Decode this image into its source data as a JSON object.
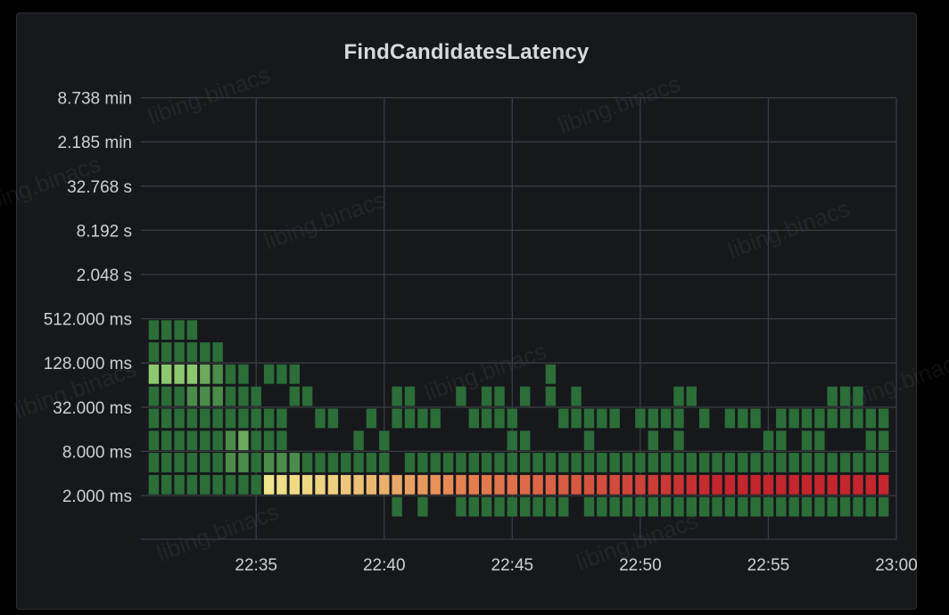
{
  "panel": {
    "title": "FindCandidatesLatency"
  },
  "watermark": {
    "text": "libing.binacs"
  },
  "chart_data": {
    "type": "heatmap",
    "title": "FindCandidatesLatency",
    "xlabel": "",
    "ylabel": "",
    "y_scale": "log2",
    "x_range": [
      "22:30:30",
      "23:00:00"
    ],
    "x_ticks": [
      "22:35",
      "22:40",
      "22:45",
      "22:50",
      "22:55",
      "23:00"
    ],
    "y_ticks": [
      "2.000 ms",
      "8.000 ms",
      "32.000 ms",
      "128.000 ms",
      "512.000 ms",
      "2.048 s",
      "8.192 s",
      "32.768 s",
      "2.185 min",
      "8.738 min"
    ],
    "y_buckets": [
      "0.5–1 ms",
      "1–2 ms",
      "2–4 ms",
      "4–8 ms",
      "8–16 ms",
      "16–32 ms",
      "32–64 ms",
      "64–128 ms",
      "128–256 ms"
    ],
    "x_columns": [
      "22:31:00",
      "22:31:30",
      "22:32:00",
      "22:32:30",
      "22:33:00",
      "22:33:30",
      "22:34:00",
      "22:34:30",
      "22:35:00",
      "22:35:30",
      "22:36:00",
      "22:36:30",
      "22:37:00",
      "22:37:30",
      "22:38:00",
      "22:38:30",
      "22:39:00",
      "22:39:30",
      "22:40:00",
      "22:40:30",
      "22:41:00",
      "22:41:30",
      "22:42:00",
      "22:42:30",
      "22:43:00",
      "22:43:30",
      "22:44:00",
      "22:44:30",
      "22:45:00",
      "22:45:30",
      "22:46:00",
      "22:46:30",
      "22:47:00",
      "22:47:30",
      "22:48:00",
      "22:48:30",
      "22:49:00",
      "22:49:30",
      "22:50:00",
      "22:50:30",
      "22:51:00",
      "22:51:30",
      "22:52:00",
      "22:52:30",
      "22:53:00",
      "22:53:30",
      "22:54:00",
      "22:54:30",
      "22:55:00",
      "22:55:30",
      "22:56:00",
      "22:56:30",
      "22:57:00",
      "22:57:30",
      "22:58:00",
      "22:58:30",
      "22:59:00",
      "22:59:30"
    ],
    "color_scheme": {
      "low": "#2b6e38",
      "mid": "#f0e68c",
      "high": "#c4262e"
    },
    "cells": [
      [
        0,
        1,
        2
      ],
      [
        0,
        2,
        2
      ],
      [
        0,
        3,
        2
      ],
      [
        0,
        4,
        2
      ],
      [
        0,
        5,
        2
      ],
      [
        0,
        6,
        5
      ],
      [
        0,
        7,
        2
      ],
      [
        0,
        8,
        2
      ],
      [
        1,
        1,
        2
      ],
      [
        1,
        2,
        2
      ],
      [
        1,
        3,
        2
      ],
      [
        1,
        4,
        2
      ],
      [
        1,
        5,
        2
      ],
      [
        1,
        6,
        5
      ],
      [
        1,
        7,
        2
      ],
      [
        1,
        8,
        2
      ],
      [
        2,
        1,
        2
      ],
      [
        2,
        2,
        2
      ],
      [
        2,
        3,
        2
      ],
      [
        2,
        4,
        2
      ],
      [
        2,
        5,
        2
      ],
      [
        2,
        6,
        5
      ],
      [
        2,
        7,
        2
      ],
      [
        2,
        8,
        2
      ],
      [
        3,
        1,
        2
      ],
      [
        3,
        2,
        2
      ],
      [
        3,
        3,
        2
      ],
      [
        3,
        4,
        2
      ],
      [
        3,
        5,
        3
      ],
      [
        3,
        6,
        5
      ],
      [
        3,
        7,
        2
      ],
      [
        3,
        8,
        2
      ],
      [
        4,
        1,
        2
      ],
      [
        4,
        2,
        2
      ],
      [
        4,
        3,
        2
      ],
      [
        4,
        4,
        2
      ],
      [
        4,
        5,
        3
      ],
      [
        4,
        6,
        4
      ],
      [
        4,
        7,
        2
      ],
      [
        5,
        1,
        2
      ],
      [
        5,
        2,
        2
      ],
      [
        5,
        3,
        2
      ],
      [
        5,
        4,
        2
      ],
      [
        5,
        5,
        3
      ],
      [
        5,
        6,
        3
      ],
      [
        5,
        7,
        2
      ],
      [
        6,
        1,
        2
      ],
      [
        6,
        2,
        3
      ],
      [
        6,
        3,
        3
      ],
      [
        6,
        4,
        2
      ],
      [
        6,
        5,
        2
      ],
      [
        6,
        6,
        2
      ],
      [
        7,
        1,
        2
      ],
      [
        7,
        2,
        3
      ],
      [
        7,
        3,
        4
      ],
      [
        7,
        4,
        2
      ],
      [
        7,
        5,
        2
      ],
      [
        7,
        6,
        2
      ],
      [
        8,
        1,
        2
      ],
      [
        8,
        2,
        2
      ],
      [
        8,
        3,
        2
      ],
      [
        8,
        4,
        2
      ],
      [
        8,
        5,
        2
      ],
      [
        9,
        1,
        14
      ],
      [
        9,
        2,
        3
      ],
      [
        9,
        3,
        2
      ],
      [
        9,
        4,
        2
      ],
      [
        9,
        6,
        2
      ],
      [
        10,
        1,
        16
      ],
      [
        10,
        2,
        3
      ],
      [
        10,
        3,
        2
      ],
      [
        10,
        4,
        2
      ],
      [
        10,
        6,
        2
      ],
      [
        11,
        1,
        17
      ],
      [
        11,
        2,
        3
      ],
      [
        11,
        5,
        2
      ],
      [
        11,
        6,
        2
      ],
      [
        12,
        1,
        18
      ],
      [
        12,
        2,
        2
      ],
      [
        12,
        5,
        2
      ],
      [
        13,
        1,
        19
      ],
      [
        13,
        2,
        2
      ],
      [
        13,
        4,
        2
      ],
      [
        14,
        1,
        20
      ],
      [
        14,
        2,
        2
      ],
      [
        14,
        4,
        2
      ],
      [
        15,
        1,
        22
      ],
      [
        15,
        2,
        2
      ],
      [
        16,
        1,
        24
      ],
      [
        16,
        2,
        2
      ],
      [
        16,
        3,
        2
      ],
      [
        17,
        1,
        26
      ],
      [
        17,
        2,
        2
      ],
      [
        17,
        4,
        2
      ],
      [
        18,
        1,
        28
      ],
      [
        18,
        2,
        2
      ],
      [
        18,
        3,
        2
      ],
      [
        19,
        1,
        30
      ],
      [
        19,
        0,
        2
      ],
      [
        19,
        4,
        2
      ],
      [
        19,
        5,
        2
      ],
      [
        20,
        1,
        32
      ],
      [
        20,
        2,
        2
      ],
      [
        20,
        4,
        2
      ],
      [
        20,
        5,
        2
      ],
      [
        21,
        1,
        34
      ],
      [
        21,
        0,
        2
      ],
      [
        21,
        2,
        2
      ],
      [
        21,
        4,
        2
      ],
      [
        22,
        1,
        36
      ],
      [
        22,
        2,
        2
      ],
      [
        22,
        4,
        2
      ],
      [
        23,
        1,
        38
      ],
      [
        23,
        2,
        2
      ],
      [
        24,
        1,
        40
      ],
      [
        24,
        0,
        2
      ],
      [
        24,
        2,
        2
      ],
      [
        24,
        5,
        2
      ],
      [
        25,
        1,
        42
      ],
      [
        25,
        0,
        2
      ],
      [
        25,
        2,
        2
      ],
      [
        25,
        4,
        2
      ],
      [
        26,
        1,
        44
      ],
      [
        26,
        0,
        2
      ],
      [
        26,
        2,
        2
      ],
      [
        26,
        4,
        2
      ],
      [
        26,
        5,
        2
      ],
      [
        27,
        1,
        46
      ],
      [
        27,
        0,
        2
      ],
      [
        27,
        2,
        2
      ],
      [
        27,
        4,
        2
      ],
      [
        27,
        5,
        2
      ],
      [
        28,
        1,
        48
      ],
      [
        28,
        0,
        2
      ],
      [
        28,
        2,
        2
      ],
      [
        28,
        3,
        2
      ],
      [
        28,
        4,
        2
      ],
      [
        29,
        1,
        50
      ],
      [
        29,
        0,
        2
      ],
      [
        29,
        2,
        2
      ],
      [
        29,
        3,
        2
      ],
      [
        29,
        5,
        2
      ],
      [
        30,
        1,
        52
      ],
      [
        30,
        0,
        2
      ],
      [
        30,
        2,
        2
      ],
      [
        31,
        1,
        54
      ],
      [
        31,
        0,
        2
      ],
      [
        31,
        2,
        2
      ],
      [
        31,
        5,
        2
      ],
      [
        31,
        6,
        2
      ],
      [
        32,
        1,
        56
      ],
      [
        32,
        0,
        2
      ],
      [
        32,
        2,
        2
      ],
      [
        32,
        4,
        2
      ],
      [
        33,
        1,
        58
      ],
      [
        33,
        2,
        2
      ],
      [
        33,
        4,
        2
      ],
      [
        33,
        5,
        2
      ],
      [
        34,
        1,
        60
      ],
      [
        34,
        0,
        2
      ],
      [
        34,
        2,
        2
      ],
      [
        34,
        3,
        2
      ],
      [
        34,
        4,
        2
      ],
      [
        35,
        1,
        62
      ],
      [
        35,
        0,
        2
      ],
      [
        35,
        2,
        2
      ],
      [
        35,
        4,
        2
      ],
      [
        36,
        1,
        64
      ],
      [
        36,
        0,
        2
      ],
      [
        36,
        2,
        2
      ],
      [
        36,
        4,
        2
      ],
      [
        37,
        1,
        66
      ],
      [
        37,
        0,
        2
      ],
      [
        37,
        2,
        2
      ],
      [
        38,
        1,
        68
      ],
      [
        38,
        0,
        2
      ],
      [
        38,
        2,
        2
      ],
      [
        38,
        4,
        2
      ],
      [
        39,
        1,
        70
      ],
      [
        39,
        0,
        2
      ],
      [
        39,
        2,
        2
      ],
      [
        39,
        3,
        2
      ],
      [
        39,
        4,
        2
      ],
      [
        40,
        1,
        72
      ],
      [
        40,
        0,
        2
      ],
      [
        40,
        2,
        2
      ],
      [
        40,
        4,
        2
      ],
      [
        41,
        1,
        74
      ],
      [
        41,
        0,
        2
      ],
      [
        41,
        2,
        2
      ],
      [
        41,
        3,
        2
      ],
      [
        41,
        4,
        2
      ],
      [
        41,
        5,
        2
      ],
      [
        42,
        1,
        76
      ],
      [
        42,
        0,
        2
      ],
      [
        42,
        2,
        2
      ],
      [
        42,
        5,
        2
      ],
      [
        43,
        1,
        78
      ],
      [
        43,
        0,
        2
      ],
      [
        43,
        2,
        2
      ],
      [
        43,
        4,
        2
      ],
      [
        44,
        1,
        80
      ],
      [
        44,
        0,
        2
      ],
      [
        44,
        2,
        2
      ],
      [
        45,
        1,
        82
      ],
      [
        45,
        0,
        2
      ],
      [
        45,
        2,
        2
      ],
      [
        45,
        4,
        2
      ],
      [
        46,
        1,
        84
      ],
      [
        46,
        0,
        2
      ],
      [
        46,
        2,
        2
      ],
      [
        46,
        4,
        2
      ],
      [
        47,
        1,
        86
      ],
      [
        47,
        0,
        2
      ],
      [
        47,
        2,
        2
      ],
      [
        47,
        4,
        2
      ],
      [
        48,
        1,
        88
      ],
      [
        48,
        0,
        2
      ],
      [
        48,
        2,
        2
      ],
      [
        48,
        3,
        2
      ],
      [
        49,
        1,
        90
      ],
      [
        49,
        0,
        2
      ],
      [
        49,
        2,
        2
      ],
      [
        49,
        3,
        2
      ],
      [
        49,
        4,
        2
      ],
      [
        50,
        1,
        92
      ],
      [
        50,
        0,
        2
      ],
      [
        50,
        2,
        2
      ],
      [
        50,
        4,
        2
      ],
      [
        51,
        1,
        94
      ],
      [
        51,
        0,
        2
      ],
      [
        51,
        2,
        2
      ],
      [
        51,
        3,
        2
      ],
      [
        51,
        4,
        2
      ],
      [
        52,
        1,
        96
      ],
      [
        52,
        0,
        2
      ],
      [
        52,
        2,
        2
      ],
      [
        52,
        3,
        2
      ],
      [
        52,
        4,
        2
      ],
      [
        53,
        1,
        98
      ],
      [
        53,
        0,
        2
      ],
      [
        53,
        2,
        2
      ],
      [
        53,
        4,
        2
      ],
      [
        53,
        5,
        2
      ],
      [
        54,
        1,
        100
      ],
      [
        54,
        0,
        2
      ],
      [
        54,
        2,
        2
      ],
      [
        54,
        4,
        2
      ],
      [
        54,
        5,
        2
      ],
      [
        55,
        1,
        100
      ],
      [
        55,
        0,
        2
      ],
      [
        55,
        2,
        2
      ],
      [
        55,
        4,
        2
      ],
      [
        55,
        5,
        2
      ],
      [
        56,
        1,
        100
      ],
      [
        56,
        0,
        2
      ],
      [
        56,
        2,
        2
      ],
      [
        56,
        3,
        2
      ],
      [
        56,
        4,
        2
      ],
      [
        57,
        1,
        100
      ],
      [
        57,
        0,
        2
      ],
      [
        57,
        2,
        2
      ],
      [
        57,
        3,
        2
      ],
      [
        57,
        4,
        2
      ]
    ]
  }
}
